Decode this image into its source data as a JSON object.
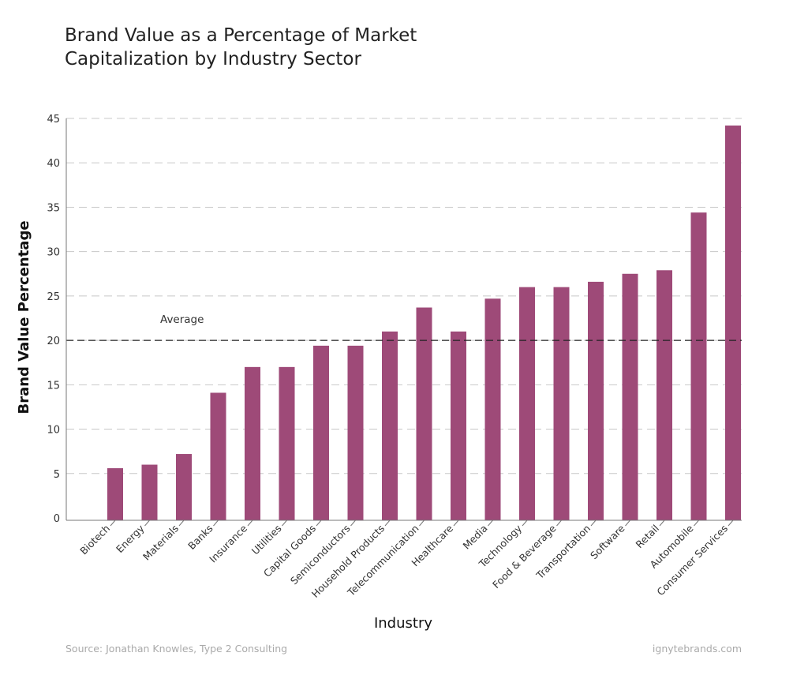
{
  "chart_data": {
    "type": "bar",
    "title": "Brand Value as a Percentage of Market Capitalization by Industry Sector",
    "xlabel": "Industry",
    "ylabel": "Brand Value Percentage",
    "ylim": [
      0,
      45
    ],
    "yticks": [
      0,
      5,
      10,
      15,
      20,
      25,
      30,
      35,
      40,
      45
    ],
    "grid": true,
    "bar_color": "#9e4a78",
    "categories": [
      "Biotech",
      "Energy",
      "Materials",
      "Banks",
      "Insurance",
      "Utilities",
      "Capital Goods",
      "Semiconductors",
      "Household Products",
      "Telecommunication",
      "Healthcare",
      "Media",
      "Technology",
      "Food & Beverage",
      "Transportation",
      "Software",
      "Retail",
      "Automobile",
      "Consumer Services"
    ],
    "values": [
      5.6,
      6.0,
      7.2,
      14.1,
      17.0,
      17.0,
      19.4,
      19.4,
      21.0,
      23.7,
      21.0,
      24.7,
      26.0,
      26.0,
      26.6,
      27.5,
      27.9,
      34.4,
      44.2
    ],
    "reference_line": {
      "label": "Average",
      "value": 20
    }
  },
  "footer": {
    "source": "Source: Jonathan Knowles, Type 2 Consulting",
    "site": "ignytebrands.com"
  }
}
